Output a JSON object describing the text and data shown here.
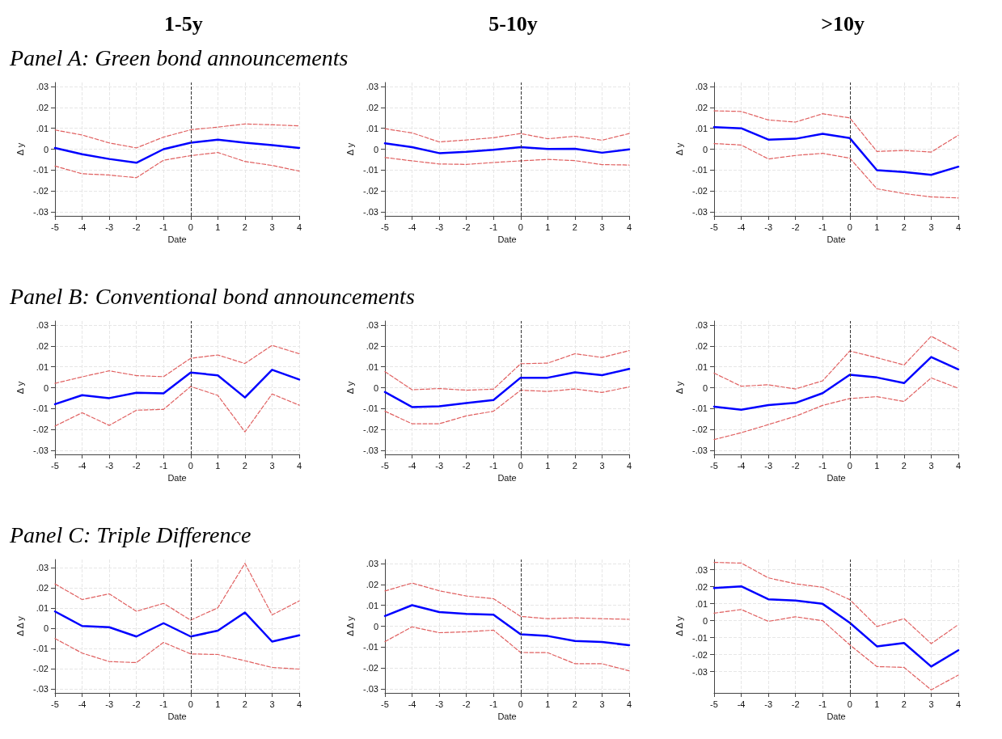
{
  "chart_data": [
    {
      "type": "line",
      "title": "1-5y",
      "subtitle": "Panel A: Green bond announcements",
      "xlabel": "Date",
      "ylabel": "Δ y",
      "x": [
        -5,
        -4,
        -3,
        -2,
        -1,
        0,
        1,
        2,
        3,
        4
      ],
      "xlim": [
        -5,
        4
      ],
      "xticks": [
        -5,
        -4,
        -3,
        -2,
        -1,
        0,
        1,
        2,
        3,
        4
      ],
      "ylim": [
        -0.032,
        0.032
      ],
      "yticks": [
        {
          "value": -0.03,
          "label": "-.03"
        },
        {
          "value": -0.02,
          "label": "-.02"
        },
        {
          "value": -0.01,
          "label": "-.01"
        },
        {
          "value": 0,
          "label": "0"
        },
        {
          "value": 0.01,
          "label": ".01"
        },
        {
          "value": 0.02,
          "label": ".02"
        },
        {
          "value": 0.03,
          "label": ".03"
        }
      ],
      "grid": true,
      "marker": "none",
      "ref_lines": [
        {
          "axis": "x",
          "value": 0,
          "color": "#333333",
          "line_style": "dashed"
        }
      ],
      "series": [
        {
          "color": "#0000ff",
          "line_style": "solid",
          "values": [
            0.0006,
            -0.0024,
            -0.0047,
            -0.0065,
            0,
            0.0031,
            0.0046,
            0.0031,
            0.0019,
            0.0006
          ]
        },
        {
          "color": "#e06060",
          "line_style": "dashed",
          "values": [
            0.0092,
            0.0068,
            0.003,
            0.0006,
            0.0058,
            0.0093,
            0.0106,
            0.0121,
            0.0117,
            0.0112
          ]
        },
        {
          "color": "#e06060",
          "line_style": "dashed",
          "values": [
            -0.0081,
            -0.0118,
            -0.0124,
            -0.0137,
            -0.0053,
            -0.0031,
            -0.0016,
            -0.0059,
            -0.0078,
            -0.0105
          ]
        }
      ]
    },
    {
      "type": "line",
      "title": "5-10y",
      "xlabel": "Date",
      "ylabel": "Δ y",
      "x": [
        -5,
        -4,
        -3,
        -2,
        -1,
        0,
        1,
        2,
        3,
        4
      ],
      "xlim": [
        -5,
        4
      ],
      "xticks": [
        -5,
        -4,
        -3,
        -2,
        -1,
        0,
        1,
        2,
        3,
        4
      ],
      "ylim": [
        -0.032,
        0.032
      ],
      "yticks": [
        {
          "value": -0.03,
          "label": "-.03"
        },
        {
          "value": -0.02,
          "label": "-.02"
        },
        {
          "value": -0.01,
          "label": "-.01"
        },
        {
          "value": 0,
          "label": "0"
        },
        {
          "value": 0.01,
          "label": ".01"
        },
        {
          "value": 0.02,
          "label": ".02"
        },
        {
          "value": 0.03,
          "label": ".03"
        }
      ],
      "grid": true,
      "marker": "none",
      "ref_lines": [
        {
          "axis": "x",
          "value": 0,
          "color": "#333333",
          "line_style": "dashed"
        }
      ],
      "series": [
        {
          "color": "#0000ff",
          "line_style": "solid",
          "values": [
            0.0028,
            0.001,
            -0.0019,
            -0.0013,
            -0.0003,
            0.001,
            0.0001,
            0.0002,
            -0.0017,
            -0.0001
          ]
        },
        {
          "color": "#e06060",
          "line_style": "dashed",
          "values": [
            0.0098,
            0.0078,
            0.0035,
            0.0044,
            0.0055,
            0.0075,
            0.005,
            0.0062,
            0.0043,
            0.0075
          ]
        },
        {
          "color": "#e06060",
          "line_style": "dashed",
          "values": [
            -0.004,
            -0.0056,
            -0.0071,
            -0.0073,
            -0.0064,
            -0.0056,
            -0.0049,
            -0.0055,
            -0.0074,
            -0.0076
          ]
        }
      ]
    },
    {
      "type": "line",
      "title": ">10y",
      "xlabel": "Date",
      "ylabel": "Δ y",
      "x": [
        -5,
        -4,
        -3,
        -2,
        -1,
        0,
        1,
        2,
        3,
        4
      ],
      "xlim": [
        -5,
        4
      ],
      "xticks": [
        -5,
        -4,
        -3,
        -2,
        -1,
        0,
        1,
        2,
        3,
        4
      ],
      "ylim": [
        -0.032,
        0.032
      ],
      "yticks": [
        {
          "value": -0.03,
          "label": "-.03"
        },
        {
          "value": -0.02,
          "label": "-.02"
        },
        {
          "value": -0.01,
          "label": "-.01"
        },
        {
          "value": 0,
          "label": "0"
        },
        {
          "value": 0.01,
          "label": ".01"
        },
        {
          "value": 0.02,
          "label": ".02"
        },
        {
          "value": 0.03,
          "label": ".03"
        }
      ],
      "grid": true,
      "marker": "none",
      "ref_lines": [
        {
          "axis": "x",
          "value": 0,
          "color": "#333333",
          "line_style": "dashed"
        }
      ],
      "series": [
        {
          "color": "#0000ff",
          "line_style": "solid",
          "values": [
            0.0106,
            0.01,
            0.0046,
            0.005,
            0.0074,
            0.0053,
            -0.0101,
            -0.011,
            -0.0123,
            -0.0084
          ]
        },
        {
          "color": "#e06060",
          "line_style": "dashed",
          "values": [
            0.0184,
            0.0181,
            0.014,
            0.013,
            0.017,
            0.015,
            -0.0011,
            -0.0006,
            -0.0014,
            0.0067
          ]
        },
        {
          "color": "#e06060",
          "line_style": "dashed",
          "values": [
            0.0027,
            0.002,
            -0.0047,
            -0.003,
            -0.002,
            -0.0043,
            -0.019,
            -0.0213,
            -0.0229,
            -0.0234
          ]
        }
      ]
    },
    {
      "type": "line",
      "subtitle": "Panel B: Conventional bond announcements",
      "xlabel": "Date",
      "ylabel": "Δ y",
      "x": [
        -5,
        -4,
        -3,
        -2,
        -1,
        0,
        1,
        2,
        3,
        4
      ],
      "xlim": [
        -5,
        4
      ],
      "xticks": [
        -5,
        -4,
        -3,
        -2,
        -1,
        0,
        1,
        2,
        3,
        4
      ],
      "ylim": [
        -0.032,
        0.032
      ],
      "yticks": [
        {
          "value": -0.03,
          "label": "-.03"
        },
        {
          "value": -0.02,
          "label": "-.02"
        },
        {
          "value": -0.01,
          "label": "-.01"
        },
        {
          "value": 0,
          "label": "0"
        },
        {
          "value": 0.01,
          "label": ".01"
        },
        {
          "value": 0.02,
          "label": ".02"
        },
        {
          "value": 0.03,
          "label": ".03"
        }
      ],
      "grid": true,
      "marker": "none",
      "ref_lines": [
        {
          "axis": "x",
          "value": 0,
          "color": "#333333",
          "line_style": "dashed"
        }
      ],
      "series": [
        {
          "color": "#0000ff",
          "line_style": "solid",
          "values": [
            -0.0079,
            -0.0036,
            -0.005,
            -0.0024,
            -0.0027,
            0.0073,
            0.0059,
            -0.0047,
            0.0086,
            0.0039
          ]
        },
        {
          "color": "#e06060",
          "line_style": "dashed",
          "values": [
            0.0021,
            0.0052,
            0.0081,
            0.0058,
            0.0053,
            0.0141,
            0.0157,
            0.0116,
            0.0203,
            0.0163
          ]
        },
        {
          "color": "#e06060",
          "line_style": "dashed",
          "values": [
            -0.0184,
            -0.012,
            -0.0181,
            -0.0108,
            -0.0104,
            0.0006,
            -0.0037,
            -0.0212,
            -0.003,
            -0.0084
          ]
        }
      ]
    },
    {
      "type": "line",
      "xlabel": "Date",
      "ylabel": "Δ y",
      "x": [
        -5,
        -4,
        -3,
        -2,
        -1,
        0,
        1,
        2,
        3,
        4
      ],
      "xlim": [
        -5,
        4
      ],
      "xticks": [
        -5,
        -4,
        -3,
        -2,
        -1,
        0,
        1,
        2,
        3,
        4
      ],
      "ylim": [
        -0.032,
        0.032
      ],
      "yticks": [
        {
          "value": -0.03,
          "label": "-.03"
        },
        {
          "value": -0.02,
          "label": "-.02"
        },
        {
          "value": -0.01,
          "label": "-.01"
        },
        {
          "value": 0,
          "label": "0"
        },
        {
          "value": 0.01,
          "label": ".01"
        },
        {
          "value": 0.02,
          "label": ".02"
        },
        {
          "value": 0.03,
          "label": ".03"
        }
      ],
      "grid": true,
      "marker": "none",
      "ref_lines": [
        {
          "axis": "x",
          "value": 0,
          "color": "#333333",
          "line_style": "dashed"
        }
      ],
      "series": [
        {
          "color": "#0000ff",
          "line_style": "solid",
          "values": [
            -0.0021,
            -0.0093,
            -0.0089,
            -0.0074,
            -0.0059,
            0.0048,
            0.0048,
            0.0074,
            0.006,
            0.009
          ]
        },
        {
          "color": "#e06060",
          "line_style": "dashed",
          "values": [
            0.0077,
            -0.001,
            -0.0004,
            -0.0012,
            -0.0007,
            0.0115,
            0.0118,
            0.0163,
            0.0145,
            0.0178
          ]
        },
        {
          "color": "#e06060",
          "line_style": "dashed",
          "values": [
            -0.0113,
            -0.0173,
            -0.0173,
            -0.0135,
            -0.0113,
            -0.0012,
            -0.0018,
            -0.0006,
            -0.0023,
            0.0004
          ]
        }
      ]
    },
    {
      "type": "line",
      "xlabel": "Date",
      "ylabel": "Δ y",
      "x": [
        -5,
        -4,
        -3,
        -2,
        -1,
        0,
        1,
        2,
        3,
        4
      ],
      "xlim": [
        -5,
        4
      ],
      "xticks": [
        -5,
        -4,
        -3,
        -2,
        -1,
        0,
        1,
        2,
        3,
        4
      ],
      "ylim": [
        -0.032,
        0.032
      ],
      "yticks": [
        {
          "value": -0.03,
          "label": "-.03"
        },
        {
          "value": -0.02,
          "label": "-.02"
        },
        {
          "value": -0.01,
          "label": "-.01"
        },
        {
          "value": 0,
          "label": "0"
        },
        {
          "value": 0.01,
          "label": ".01"
        },
        {
          "value": 0.02,
          "label": ".02"
        },
        {
          "value": 0.03,
          "label": ".03"
        }
      ],
      "grid": true,
      "marker": "none",
      "ref_lines": [
        {
          "axis": "x",
          "value": 0,
          "color": "#333333",
          "line_style": "dashed"
        }
      ],
      "series": [
        {
          "color": "#0000ff",
          "line_style": "solid",
          "values": [
            -0.0091,
            -0.0106,
            -0.0083,
            -0.0073,
            -0.0026,
            0.0062,
            0.0049,
            0.0022,
            0.0147,
            0.0088
          ]
        },
        {
          "color": "#e06060",
          "line_style": "dashed",
          "values": [
            0.007,
            0.0007,
            0.0014,
            -0.0006,
            0.0033,
            0.0176,
            0.0144,
            0.0109,
            0.0247,
            0.0178
          ]
        },
        {
          "color": "#e06060",
          "line_style": "dashed",
          "values": [
            -0.0249,
            -0.0216,
            -0.0177,
            -0.0137,
            -0.0085,
            -0.0052,
            -0.0043,
            -0.0066,
            0.0047,
            -0.0003
          ]
        }
      ]
    },
    {
      "type": "line",
      "subtitle": "Panel C: Triple Difference",
      "xlabel": "Date",
      "ylabel": "Δ Δ y",
      "x": [
        -5,
        -4,
        -3,
        -2,
        -1,
        0,
        1,
        2,
        3,
        4
      ],
      "xlim": [
        -5,
        4
      ],
      "xticks": [
        -5,
        -4,
        -3,
        -2,
        -1,
        0,
        1,
        2,
        3,
        4
      ],
      "ylim": [
        -0.032,
        0.034
      ],
      "yticks": [
        {
          "value": -0.03,
          "label": "-.03"
        },
        {
          "value": -0.02,
          "label": "-.02"
        },
        {
          "value": -0.01,
          "label": "-.01"
        },
        {
          "value": 0,
          "label": "0"
        },
        {
          "value": 0.01,
          "label": ".01"
        },
        {
          "value": 0.02,
          "label": ".02"
        },
        {
          "value": 0.03,
          "label": ".03"
        }
      ],
      "grid": true,
      "marker": "none",
      "ref_lines": [
        {
          "axis": "x",
          "value": 0,
          "color": "#333333",
          "line_style": "dashed"
        }
      ],
      "series": [
        {
          "color": "#0000ff",
          "line_style": "solid",
          "values": [
            0.0083,
            0.0011,
            0.0005,
            -0.0041,
            0.0025,
            -0.0041,
            -0.0012,
            0.0078,
            -0.0066,
            -0.0035
          ]
        },
        {
          "color": "#e06060",
          "line_style": "dashed",
          "values": [
            0.0219,
            0.0142,
            0.017,
            0.0084,
            0.0123,
            0.004,
            0.0101,
            0.0321,
            0.0066,
            0.0135
          ]
        },
        {
          "color": "#e06060",
          "line_style": "dashed",
          "values": [
            -0.0051,
            -0.0123,
            -0.0165,
            -0.017,
            -0.007,
            -0.0127,
            -0.013,
            -0.0161,
            -0.0194,
            -0.0202
          ]
        }
      ]
    },
    {
      "type": "line",
      "xlabel": "Date",
      "ylabel": "Δ Δ y",
      "x": [
        -5,
        -4,
        -3,
        -2,
        -1,
        0,
        1,
        2,
        3,
        4
      ],
      "xlim": [
        -5,
        4
      ],
      "xticks": [
        -5,
        -4,
        -3,
        -2,
        -1,
        0,
        1,
        2,
        3,
        4
      ],
      "ylim": [
        -0.032,
        0.032
      ],
      "yticks": [
        {
          "value": -0.03,
          "label": "-.03"
        },
        {
          "value": -0.02,
          "label": "-.02"
        },
        {
          "value": -0.01,
          "label": "-.01"
        },
        {
          "value": 0,
          "label": "0"
        },
        {
          "value": 0.01,
          "label": ".01"
        },
        {
          "value": 0.02,
          "label": ".02"
        },
        {
          "value": 0.03,
          "label": ".03"
        }
      ],
      "grid": true,
      "marker": "none",
      "ref_lines": [
        {
          "axis": "x",
          "value": 0,
          "color": "#333333",
          "line_style": "dashed"
        }
      ],
      "series": [
        {
          "color": "#0000ff",
          "line_style": "solid",
          "values": [
            0.0049,
            0.0101,
            0.0068,
            0.0059,
            0.0055,
            -0.0039,
            -0.0047,
            -0.0071,
            -0.0076,
            -0.0091
          ]
        },
        {
          "color": "#e06060",
          "line_style": "dashed",
          "values": [
            0.0169,
            0.0207,
            0.017,
            0.0145,
            0.0132,
            0.0047,
            0.0036,
            0.004,
            0.0036,
            0.0033
          ]
        },
        {
          "color": "#e06060",
          "line_style": "dashed",
          "values": [
            -0.0074,
            -0.0003,
            -0.0031,
            -0.0027,
            -0.0019,
            -0.0126,
            -0.0127,
            -0.018,
            -0.018,
            -0.0214
          ]
        }
      ]
    },
    {
      "type": "line",
      "xlabel": "Date",
      "ylabel": "Δ Δ y",
      "x": [
        -5,
        -4,
        -3,
        -2,
        -1,
        0,
        1,
        2,
        3,
        4
      ],
      "xlim": [
        -5,
        4
      ],
      "xticks": [
        -5,
        -4,
        -3,
        -2,
        -1,
        0,
        1,
        2,
        3,
        4
      ],
      "ylim": [
        -0.0425,
        0.036
      ],
      "yticks": [
        {
          "value": -0.03,
          "label": "-.03"
        },
        {
          "value": -0.02,
          "label": "-.02"
        },
        {
          "value": -0.01,
          "label": "-.01"
        },
        {
          "value": 0,
          "label": "0"
        },
        {
          "value": 0.01,
          "label": ".01"
        },
        {
          "value": 0.02,
          "label": ".02"
        },
        {
          "value": 0.03,
          "label": ".03"
        }
      ],
      "grid": true,
      "marker": "none",
      "ref_lines": [
        {
          "axis": "x",
          "value": 0,
          "color": "#333333",
          "line_style": "dashed"
        }
      ],
      "series": [
        {
          "color": "#0000ff",
          "line_style": "solid",
          "values": [
            0.0192,
            0.0202,
            0.0126,
            0.0119,
            0.0099,
            -0.0012,
            -0.0151,
            -0.0131,
            -0.027,
            -0.0174
          ]
        },
        {
          "color": "#e06060",
          "line_style": "dashed",
          "values": [
            0.0343,
            0.0339,
            0.0252,
            0.0217,
            0.0197,
            0.0124,
            -0.0034,
            0.0012,
            -0.0135,
            -0.0023
          ]
        },
        {
          "color": "#e06060",
          "line_style": "dashed",
          "values": [
            0.0044,
            0.0066,
            -0.0004,
            0.0023,
            0,
            -0.0142,
            -0.027,
            -0.0275,
            -0.0407,
            -0.032
          ]
        }
      ]
    }
  ]
}
